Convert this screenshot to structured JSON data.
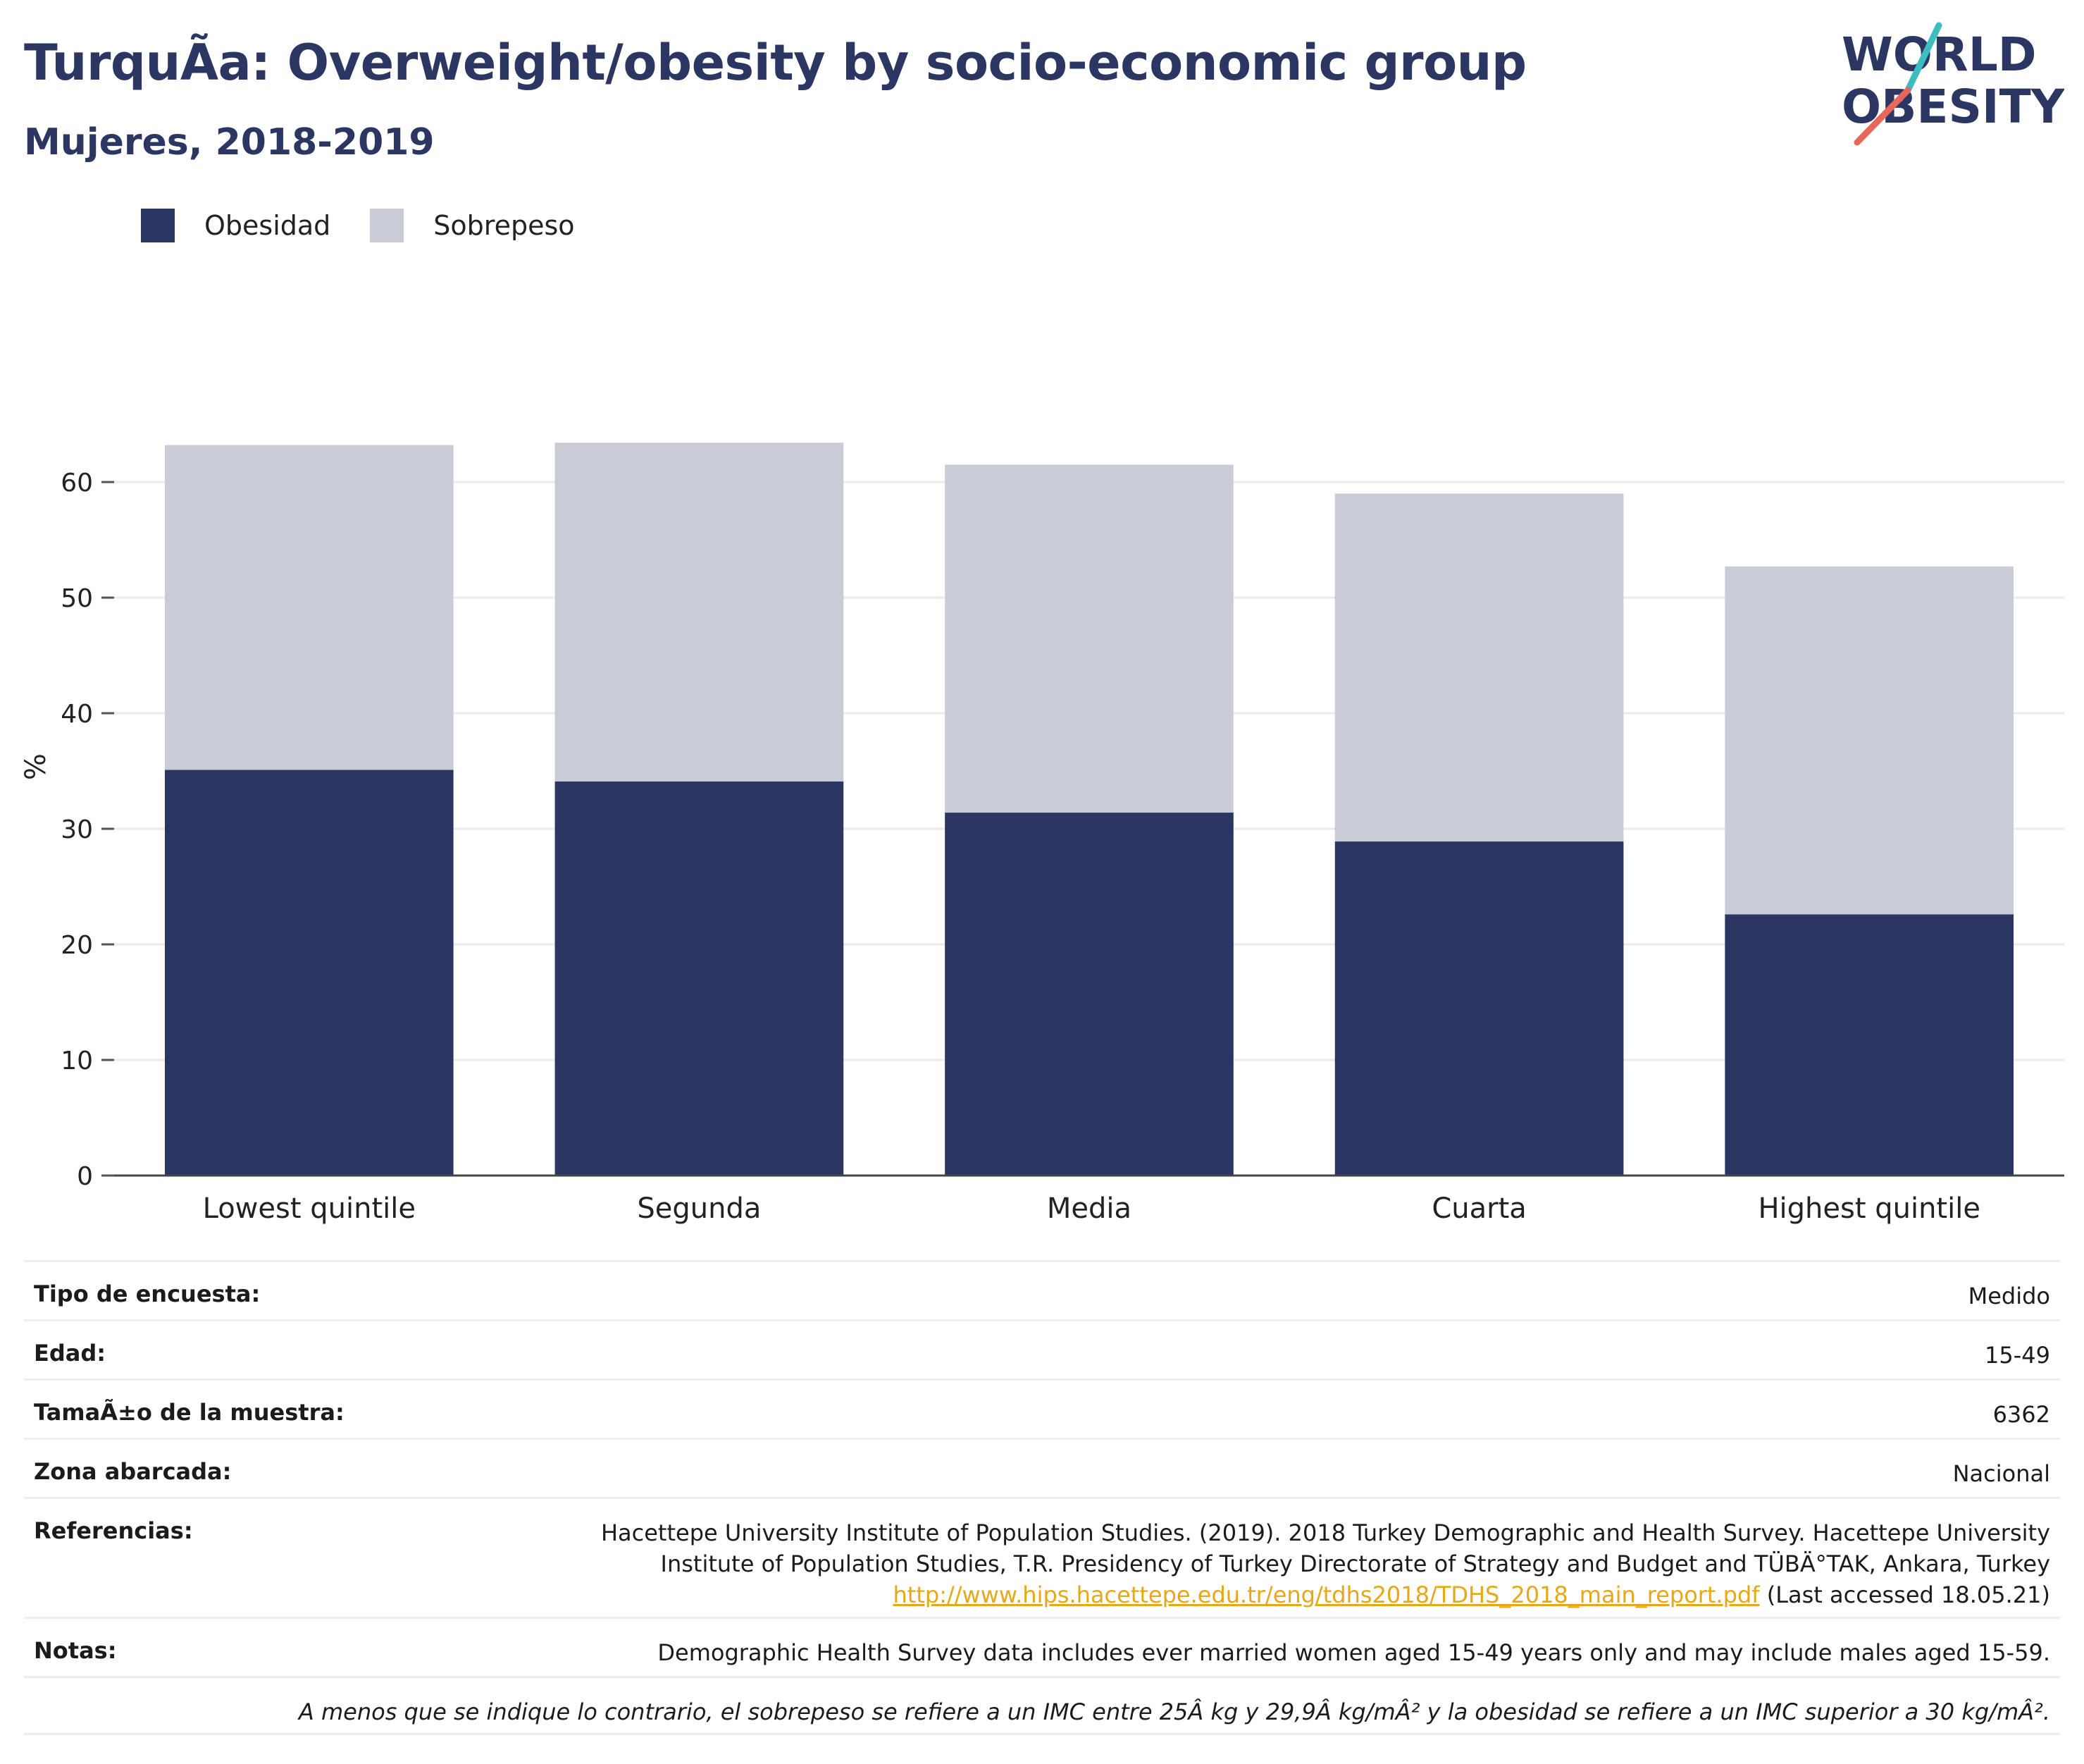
{
  "header": {
    "title": "TurquÃa: Overweight/obesity by socio-economic group",
    "subtitle": "Mujeres, 2018-2019"
  },
  "logo": {
    "line1": "WORLD",
    "line2": "OBESITY"
  },
  "colors": {
    "obesidad": "#2b3663",
    "sobrepeso": "#c9ccd7",
    "accent_teal": "#3dbdbd",
    "accent_red": "#e8675a",
    "link": "#e6a817"
  },
  "legend": [
    {
      "label": "Obesidad",
      "color": "#2b3663"
    },
    {
      "label": "Sobrepeso",
      "color": "#c9ccd7"
    }
  ],
  "chart_data": {
    "type": "bar",
    "stacked": true,
    "categories": [
      "Lowest quintile",
      "Segunda",
      "Media",
      "Cuarta",
      "Highest quintile"
    ],
    "series": [
      {
        "name": "Obesidad",
        "values": [
          35.1,
          34.1,
          31.4,
          28.9,
          22.6
        ]
      },
      {
        "name": "Sobrepeso",
        "values": [
          28.1,
          29.3,
          30.1,
          30.1,
          30.1
        ]
      }
    ],
    "ylabel": "%",
    "ylim": [
      0,
      70
    ],
    "yticks": [
      0,
      10,
      20,
      30,
      40,
      50,
      60
    ],
    "grid": true,
    "legend_position": "top-left"
  },
  "info": {
    "survey_type": {
      "label": "Tipo de encuesta:",
      "value": "Medido"
    },
    "age": {
      "label": "Edad:",
      "value": "15-49"
    },
    "sample": {
      "label": "TamaÃ±o de la muestra:",
      "value": "6362"
    },
    "area": {
      "label": "Zona abarcada:",
      "value": "Nacional"
    },
    "references": {
      "label": "Referencias:",
      "line1": "Hacettepe University Institute of Population Studies. (2019). 2018 Turkey Demographic and Health Survey. Hacettepe University",
      "line2": "Institute of Population Studies, T.R. Presidency of Turkey Directorate of Strategy and Budget and TÜBÄ°TAK, Ankara, Turkey",
      "link": "http://www.hips.hacettepe.edu.tr/eng/tdhs2018/TDHS_2018_main_report.pdf",
      "accessed": " (Last accessed 18.05.21)"
    },
    "notes": {
      "label": "Notas:",
      "value": "Demographic Health Survey data includes ever married women aged 15-49 years only and may include males aged 15-59."
    },
    "footnote": "A menos que se indique lo contrario, el sobrepeso se refiere a un IMC entre 25Â kg y 29,9Â kg/mÂ² y la obesidad se refiere a un IMC superior a 30 kg/mÂ²."
  }
}
